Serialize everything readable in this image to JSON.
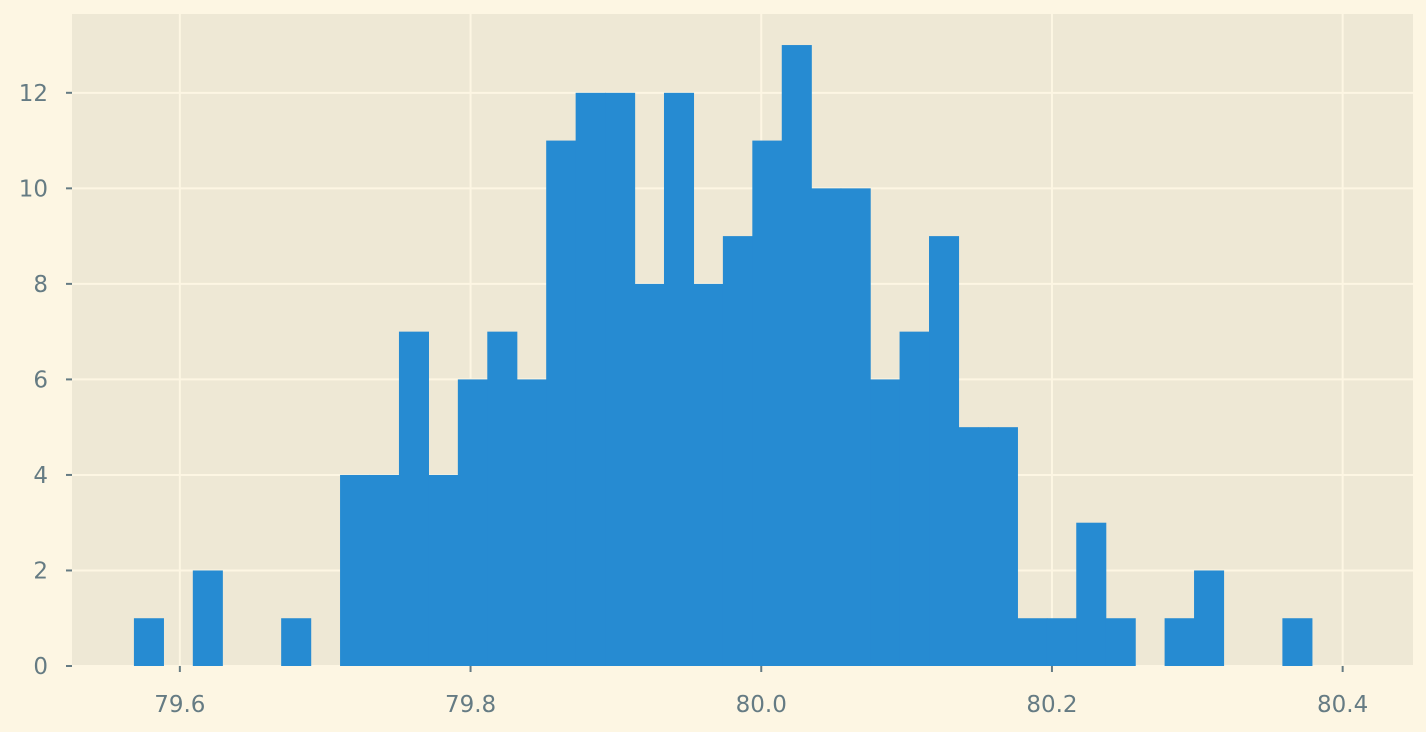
{
  "chart_data": {
    "type": "bar",
    "subtype": "histogram",
    "title": "",
    "xlabel": "",
    "ylabel": "",
    "xlim": [
      79.5258,
      80.4484
    ],
    "ylim": [
      0,
      13.65
    ],
    "bin_start": 79.5684,
    "bin_width": 0.02026,
    "counts": [
      1,
      0,
      2,
      0,
      0,
      1,
      0,
      4,
      4,
      7,
      4,
      6,
      7,
      6,
      11,
      12,
      12,
      8,
      12,
      8,
      9,
      11,
      13,
      10,
      10,
      6,
      7,
      9,
      5,
      5,
      1,
      1,
      3,
      1,
      0,
      1,
      2,
      0,
      0,
      1
    ],
    "x_ticks": [
      79.6,
      79.8,
      80.0,
      80.2,
      80.4
    ],
    "x_tick_labels": [
      "79.6",
      "79.8",
      "80.0",
      "80.2",
      "80.4"
    ],
    "y_ticks": [
      0,
      2,
      4,
      6,
      8,
      10,
      12
    ],
    "y_tick_labels": [
      "0",
      "2",
      "4",
      "6",
      "8",
      "10",
      "12"
    ],
    "grid": true,
    "legend": "none",
    "colors": {
      "bar": "#268bd2",
      "plot_background": "#eee8d5",
      "figure_background": "#fdf6e3",
      "grid": "#fdf6e3",
      "tick": "#657b83"
    }
  }
}
